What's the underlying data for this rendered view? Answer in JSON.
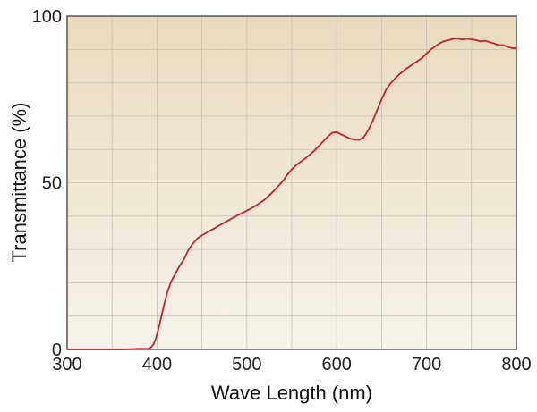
{
  "chart_data": {
    "type": "line",
    "title": "",
    "xlabel": "Wave Length (nm)",
    "ylabel": "Transmittance (%)",
    "xlim": [
      300,
      800
    ],
    "ylim": [
      0,
      100
    ],
    "x_ticks": [
      300,
      400,
      500,
      600,
      700,
      800
    ],
    "y_ticks": [
      0,
      50,
      100
    ],
    "x_tick_labels": [
      "300",
      "400",
      "500",
      "600",
      "700",
      "800"
    ],
    "y_tick_labels": [
      "0",
      "50",
      "100"
    ],
    "grid": true,
    "legend": "none",
    "colors": {
      "line": "#c8202a",
      "plot_top": "#e8dbbd",
      "plot_bottom": "#f7f3ea",
      "grid": "#c8c3b6",
      "frame": "#555555"
    },
    "series": [
      {
        "x": [
          300,
          340,
          360,
          380,
          390,
          393,
          396,
          399,
          402,
          405,
          408,
          412,
          416,
          420,
          425,
          430,
          435,
          440,
          445,
          450,
          455,
          460,
          465,
          470,
          480,
          490,
          500,
          510,
          520,
          530,
          540,
          545,
          550,
          555,
          560,
          565,
          570,
          575,
          580,
          585,
          590,
          595,
          600,
          605,
          610,
          615,
          620,
          625,
          630,
          635,
          640,
          645,
          650,
          655,
          660,
          665,
          670,
          675,
          680,
          685,
          690,
          695,
          700,
          705,
          710,
          715,
          720,
          725,
          730,
          735,
          740,
          745,
          750,
          755,
          760,
          765,
          770,
          775,
          780,
          785,
          790,
          795,
          800
        ],
        "y": [
          0,
          0,
          0,
          0.2,
          0.2,
          0.5,
          1.5,
          3.5,
          6.5,
          10,
          13.5,
          17.5,
          20.5,
          22.5,
          25,
          27,
          29.8,
          31.8,
          33.3,
          34.2,
          35,
          35.8,
          36.5,
          37.3,
          38.8,
          40.3,
          41.6,
          43.1,
          45,
          47.5,
          50.5,
          52.4,
          54,
          55.3,
          56.3,
          57.3,
          58.4,
          59.6,
          61,
          62.4,
          63.8,
          65,
          65.2,
          64.5,
          63.9,
          63.2,
          62.9,
          62.9,
          63.6,
          65.7,
          68.5,
          71.8,
          75,
          78,
          79.8,
          81.3,
          82.6,
          83.7,
          84.7,
          85.6,
          86.5,
          87.4,
          88.8,
          90,
          91,
          91.9,
          92.5,
          92.8,
          93.2,
          93.2,
          93,
          93.2,
          93,
          92.8,
          92.4,
          92.6,
          92.2,
          91.8,
          91.3,
          91.3,
          90.8,
          90.4,
          90.3
        ]
      }
    ]
  }
}
